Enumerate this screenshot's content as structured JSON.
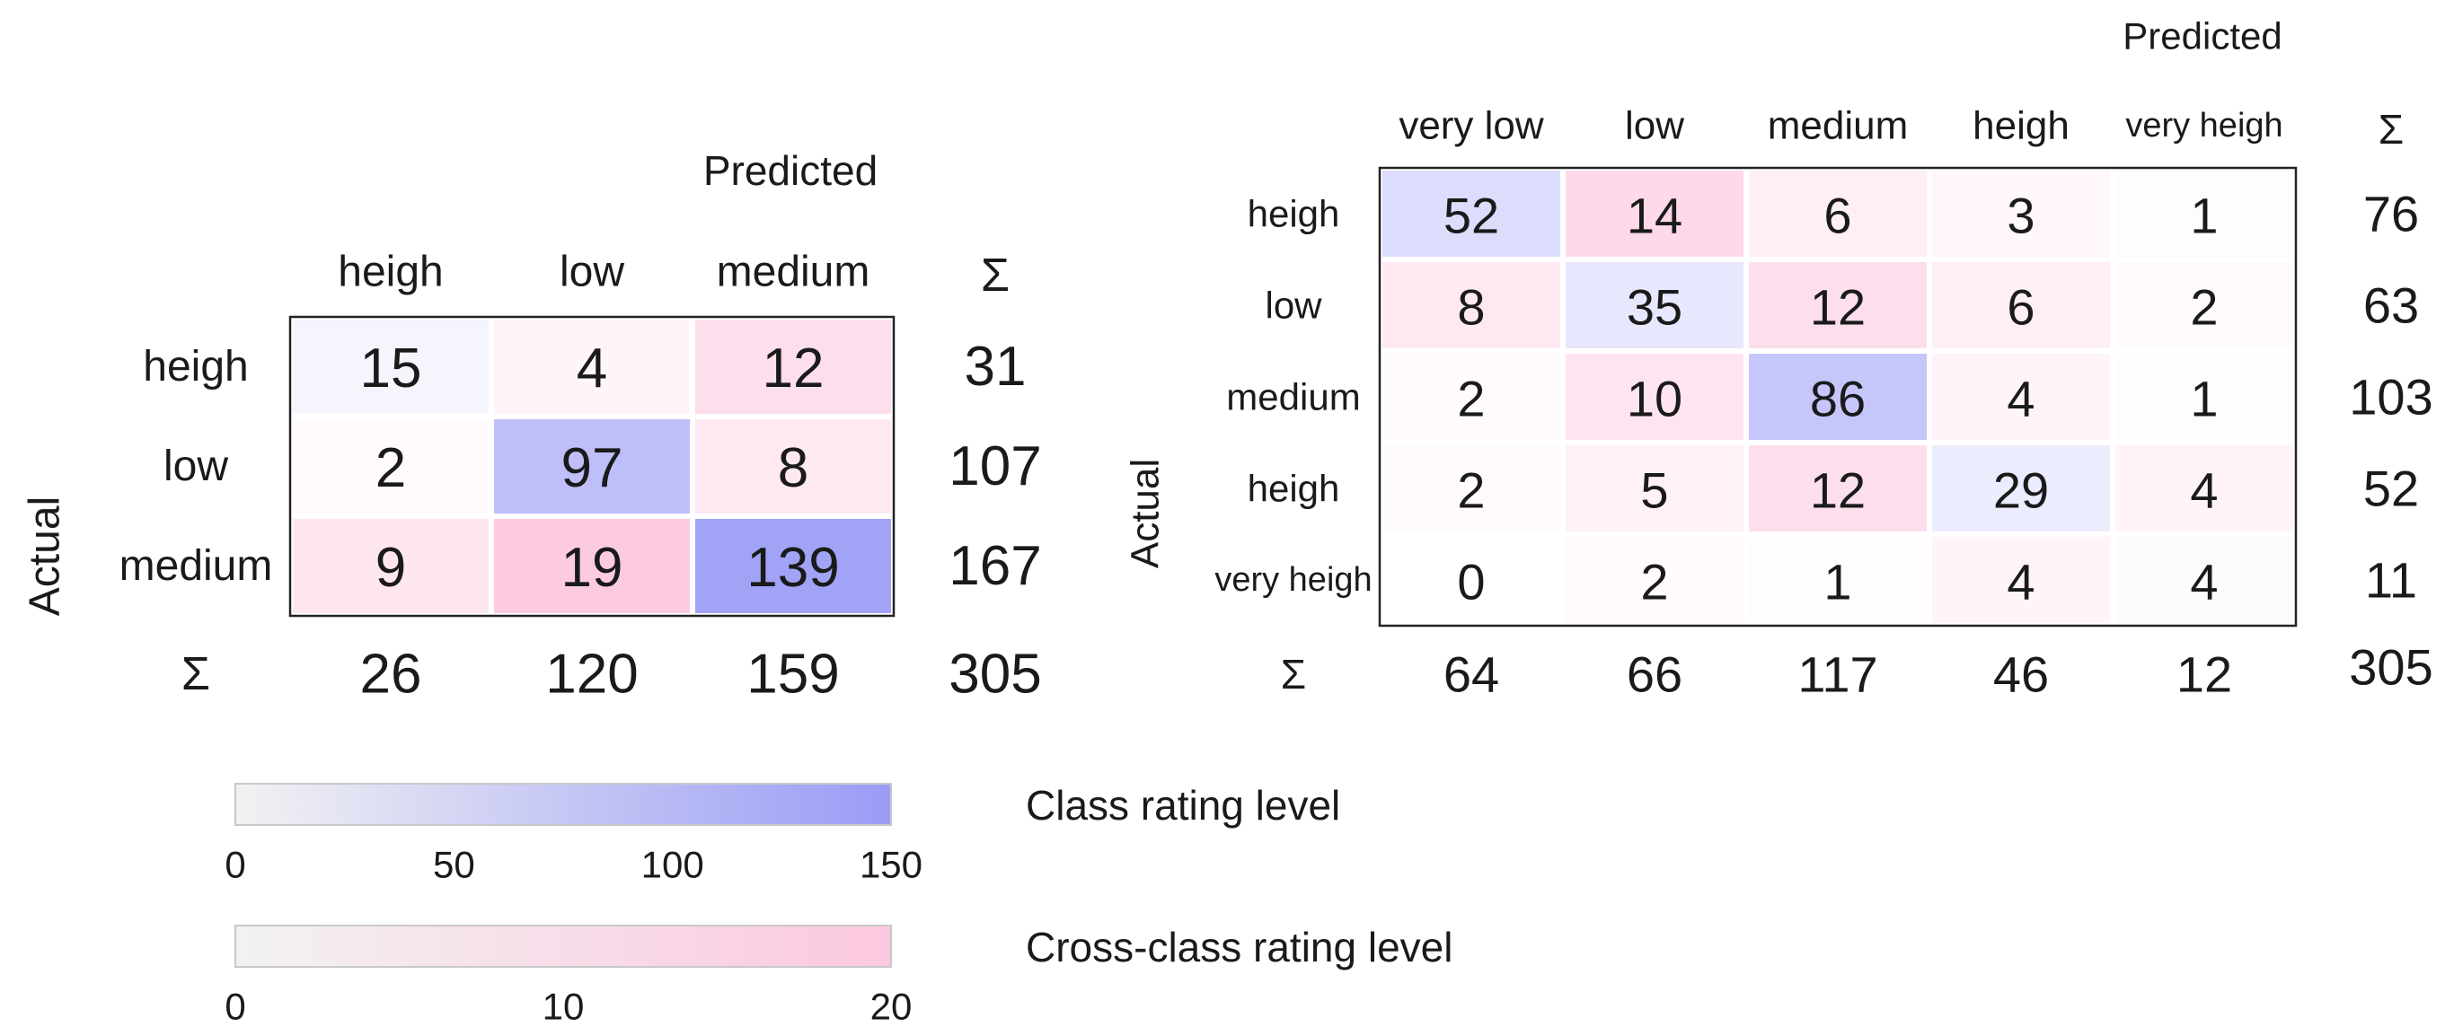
{
  "chart_data": [
    {
      "type": "heatmap",
      "title": "Predicted",
      "ylabel": "Actual",
      "x_categories": [
        "heigh",
        "low",
        "medium"
      ],
      "y_categories": [
        "heigh",
        "low",
        "medium"
      ],
      "values": [
        [
          15,
          4,
          12
        ],
        [
          2,
          97,
          8
        ],
        [
          9,
          19,
          139
        ]
      ],
      "sum_symbol": "Σ",
      "row_sums": [
        31,
        107,
        167
      ],
      "col_sums": [
        26,
        120,
        159
      ],
      "total": 305
    },
    {
      "type": "heatmap",
      "title": "Predicted",
      "ylabel": "Actual",
      "x_categories": [
        "very low",
        "low",
        "medium",
        "heigh",
        "very heigh"
      ],
      "y_categories": [
        "heigh",
        "low",
        "medium",
        "heigh",
        "very heigh"
      ],
      "values": [
        [
          52,
          14,
          6,
          3,
          1
        ],
        [
          8,
          35,
          12,
          6,
          2
        ],
        [
          2,
          10,
          86,
          4,
          1
        ],
        [
          2,
          5,
          12,
          29,
          4
        ],
        [
          0,
          2,
          1,
          4,
          4
        ]
      ],
      "sum_symbol": "Σ",
      "row_sums": [
        76,
        63,
        103,
        52,
        11
      ],
      "col_sums": [
        64,
        66,
        117,
        46,
        12
      ],
      "total": 305
    }
  ],
  "legends": [
    {
      "label": "Class rating level",
      "min": 0,
      "max": 150,
      "ticks": [
        "0",
        "50",
        "100",
        "150"
      ],
      "color_low": "#f2f2f2",
      "color_high": "#9a9cf6"
    },
    {
      "label": "Cross-class rating level",
      "min": 0,
      "max": 20,
      "ticks": [
        "0",
        "10",
        "20"
      ],
      "color_low": "#f2f2f2",
      "color_high": "#fcc8e0"
    }
  ]
}
